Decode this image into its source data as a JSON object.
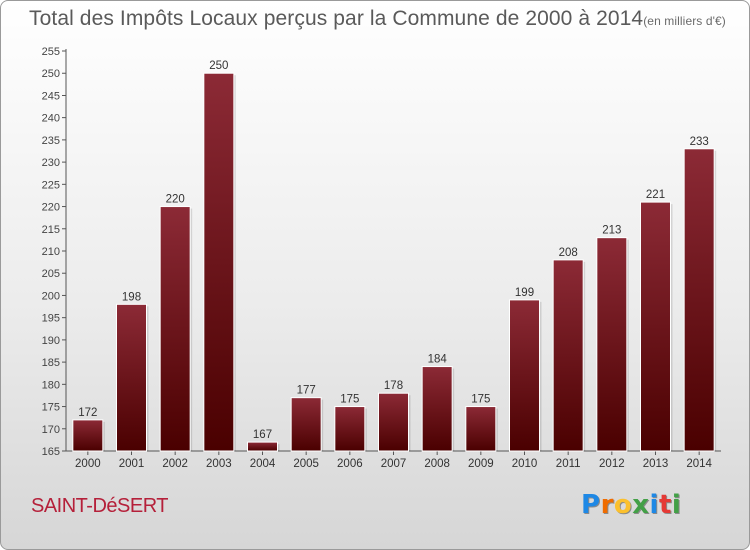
{
  "header": {
    "title": "Total des Impôts Locaux perçus par la Commune de 2000 à 2014",
    "unit": "(en milliers d'€)"
  },
  "footer": {
    "commune": "SAINT-DéSERT",
    "logo": [
      "P",
      "r",
      "o",
      "x",
      "i",
      "t",
      "i"
    ]
  },
  "colors": {
    "bar_light": "#8c2a36",
    "bar_dark": "#4a0000",
    "commune": "#b5203a",
    "logo": [
      "#1e88e5",
      "#ef6c00",
      "#fbc02d",
      "#43a047",
      "#1e88e5",
      "#e53935",
      "#43a047"
    ]
  },
  "chart_data": {
    "type": "bar",
    "title": "Total des Impôts Locaux perçus par la Commune de 2000 à 2014",
    "unit": "(en milliers d'€)",
    "categories": [
      "2000",
      "2001",
      "2002",
      "2003",
      "2004",
      "2005",
      "2006",
      "2007",
      "2008",
      "2009",
      "2010",
      "2011",
      "2012",
      "2013",
      "2014"
    ],
    "values": [
      172,
      198,
      220,
      250,
      167,
      177,
      175,
      178,
      184,
      175,
      199,
      208,
      213,
      221,
      233
    ],
    "ylim": [
      165,
      255
    ],
    "ytick_step": 5,
    "grid": false
  }
}
